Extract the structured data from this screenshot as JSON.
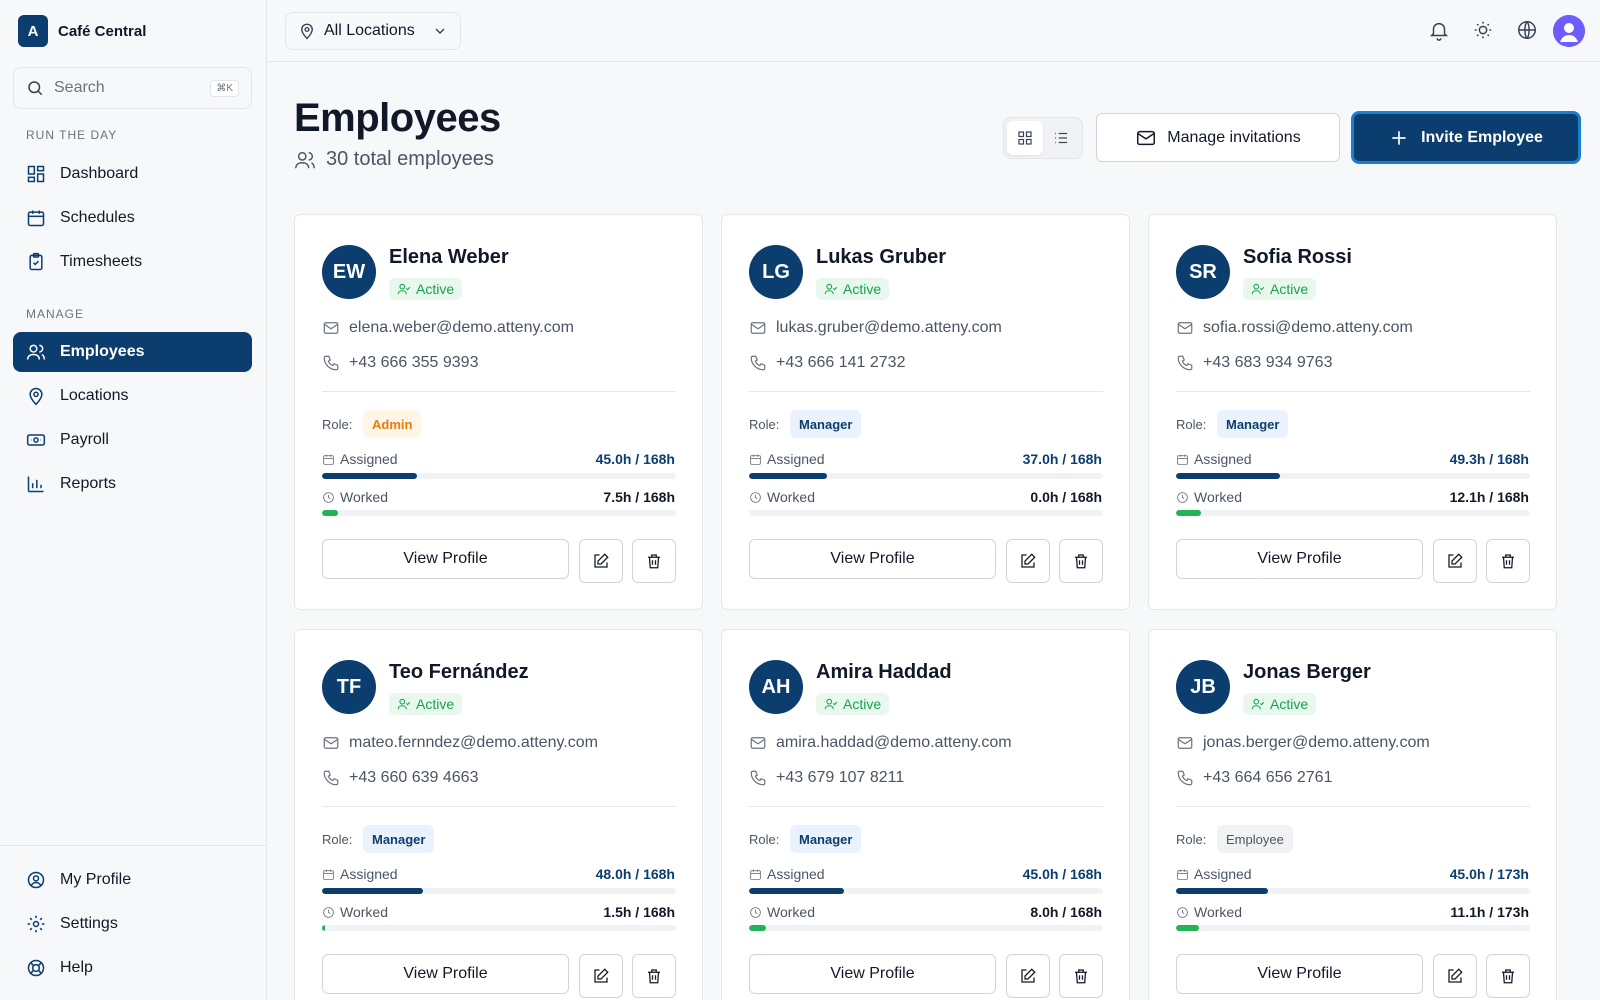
{
  "app": {
    "logo_letter": "A",
    "name": "Café Central"
  },
  "search": {
    "placeholder": "Search",
    "shortcut": "⌘K"
  },
  "sidebar": {
    "section1": "RUN THE DAY",
    "section2": "MANAGE",
    "items": [
      {
        "label": "Dashboard",
        "icon": "dashboard-icon"
      },
      {
        "label": "Schedules",
        "icon": "calendar-icon"
      },
      {
        "label": "Timesheets",
        "icon": "clipboard-icon"
      },
      {
        "label": "Employees",
        "icon": "users-icon",
        "active": true
      },
      {
        "label": "Locations",
        "icon": "map-pin-icon"
      },
      {
        "label": "Payroll",
        "icon": "payroll-icon"
      },
      {
        "label": "Reports",
        "icon": "bar-chart-icon"
      }
    ],
    "bottom": [
      {
        "label": "My Profile",
        "icon": "user-circle-icon"
      },
      {
        "label": "Settings",
        "icon": "gear-icon"
      },
      {
        "label": "Help",
        "icon": "lifebuoy-icon"
      }
    ]
  },
  "topbar": {
    "location_select": "All Locations"
  },
  "page": {
    "title": "Employees",
    "subtitle": "30 total employees",
    "manage_invitations": "Manage invitations",
    "invite_button": "Invite Employee"
  },
  "labels": {
    "role": "Role:",
    "assigned": "Assigned",
    "worked": "Worked",
    "view_profile": "View Profile"
  },
  "colors": {
    "primary": "#0b3d6e",
    "success": "#16a34a",
    "admin": "#ea7a0c"
  },
  "employees": [
    {
      "initials": "EW",
      "name": "Elena Weber",
      "status": "Active",
      "email": "elena.weber@demo.atteny.com",
      "phone": "+43 666 355 9393",
      "role": "Admin",
      "role_class": "role-admin",
      "assigned": "45.0h / 168h",
      "assigned_pct": 0.268,
      "worked": "7.5h / 168h",
      "worked_pct": 0.045
    },
    {
      "initials": "LG",
      "name": "Lukas Gruber",
      "status": "Active",
      "email": "lukas.gruber@demo.atteny.com",
      "phone": "+43 666 141 2732",
      "role": "Manager",
      "role_class": "role-manager",
      "assigned": "37.0h / 168h",
      "assigned_pct": 0.22,
      "worked": "0.0h / 168h",
      "worked_pct": 0
    },
    {
      "initials": "SR",
      "name": "Sofia Rossi",
      "status": "Active",
      "email": "sofia.rossi@demo.atteny.com",
      "phone": "+43 683 934 9763",
      "role": "Manager",
      "role_class": "role-manager",
      "assigned": "49.3h / 168h",
      "assigned_pct": 0.293,
      "worked": "12.1h / 168h",
      "worked_pct": 0.072
    },
    {
      "initials": "TF",
      "name": "Teo Fernández",
      "status": "Active",
      "email": "mateo.fernndez@demo.atteny.com",
      "phone": "+43 660 639 4663",
      "role": "Manager",
      "role_class": "role-manager",
      "assigned": "48.0h / 168h",
      "assigned_pct": 0.286,
      "worked": "1.5h / 168h",
      "worked_pct": 0.009
    },
    {
      "initials": "AH",
      "name": "Amira Haddad",
      "status": "Active",
      "email": "amira.haddad@demo.atteny.com",
      "phone": "+43 679 107 8211",
      "role": "Manager",
      "role_class": "role-manager",
      "assigned": "45.0h / 168h",
      "assigned_pct": 0.268,
      "worked": "8.0h / 168h",
      "worked_pct": 0.048
    },
    {
      "initials": "JB",
      "name": "Jonas Berger",
      "status": "Active",
      "email": "jonas.berger@demo.atteny.com",
      "phone": "+43 664 656 2761",
      "role": "Employee",
      "role_class": "role-employee",
      "assigned": "45.0h / 173h",
      "assigned_pct": 0.26,
      "worked": "11.1h / 173h",
      "worked_pct": 0.064
    }
  ]
}
